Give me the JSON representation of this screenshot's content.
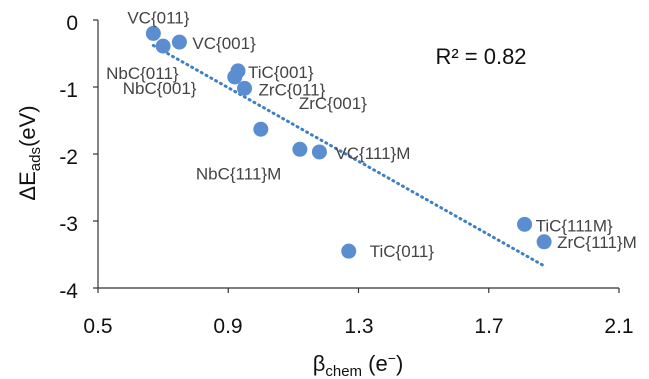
{
  "chart_data": {
    "type": "scatter",
    "title": "",
    "xlabel": {
      "main": "β",
      "sub": "chem",
      "unit_open": " (e",
      "unit_sup": "−",
      "unit_close": ")"
    },
    "ylabel": {
      "main": "ΔE",
      "sub": "ads",
      "unit": "(eV)"
    },
    "xlim": [
      0.5,
      2.1
    ],
    "ylim": [
      -4,
      0
    ],
    "xticks": [
      0.5,
      0.9,
      1.3,
      1.7,
      2.1
    ],
    "xtick_labels": [
      "0.5",
      "0.9",
      "1.3",
      "1.7",
      "2.1"
    ],
    "yticks": [
      0,
      -1,
      -2,
      -3,
      -4
    ],
    "ytick_labels": [
      "0",
      "-1",
      "-2",
      "-3",
      "-4"
    ],
    "grid": false,
    "marker_color": "#5b8ed0",
    "trendline": {
      "style": "dotted",
      "color": "#3f7fc4",
      "x": [
        0.67,
        1.87
      ],
      "y": [
        -0.38,
        -3.67
      ]
    },
    "annotation": "R² = 0.82",
    "points": [
      {
        "label": "VC{011}",
        "x": 0.67,
        "y": -0.2
      },
      {
        "label": "VC{001}",
        "x": 0.75,
        "y": -0.33
      },
      {
        "label": "NbC{011}",
        "x": 0.7,
        "y": -0.39
      },
      {
        "label": "TiC{001}",
        "x": 0.93,
        "y": -0.76
      },
      {
        "label": "NbC{001}",
        "x": 0.92,
        "y": -0.85
      },
      {
        "label": "ZrC{011}",
        "x": 0.95,
        "y": -1.02
      },
      {
        "label": "ZrC{001}",
        "x": 1.0,
        "y": -1.63
      },
      {
        "label": "NbC{111}M",
        "x": 1.12,
        "y": -1.93
      },
      {
        "label": "VC{111}M",
        "x": 1.18,
        "y": -1.97
      },
      {
        "label": "TiC{011}",
        "x": 1.27,
        "y": -3.45
      },
      {
        "label": "TiC{111M}",
        "x": 1.81,
        "y": -3.05
      },
      {
        "label": "ZrC{111}M",
        "x": 1.87,
        "y": -3.31
      }
    ]
  }
}
